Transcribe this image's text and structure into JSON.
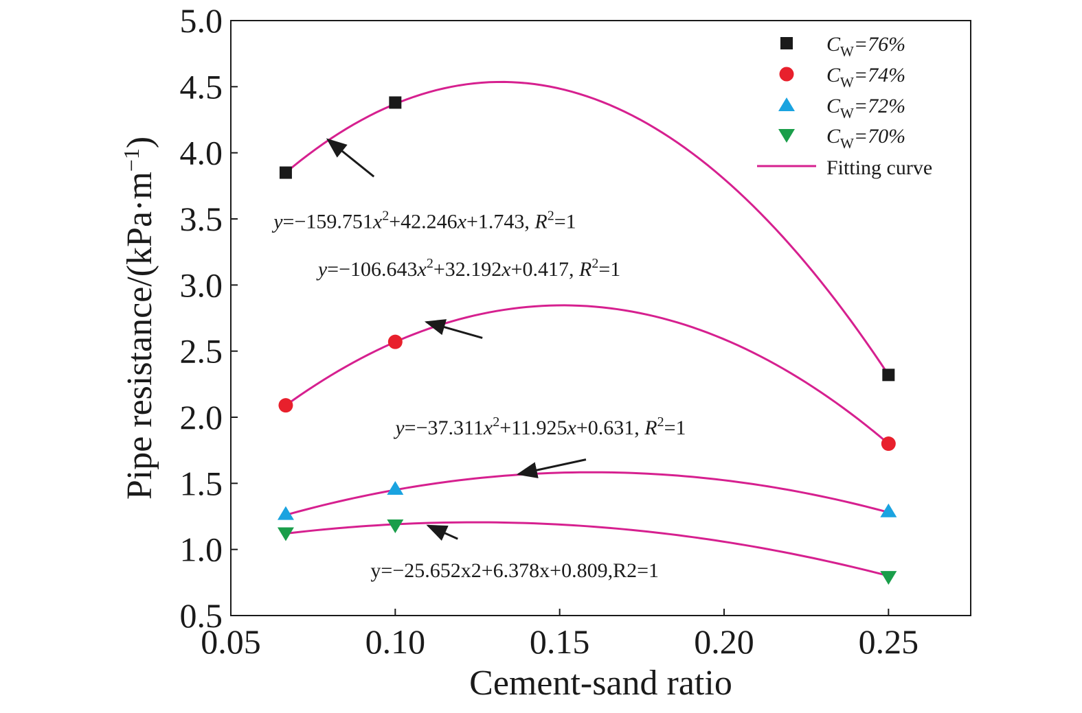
{
  "chart_data": {
    "type": "scatter",
    "xlabel": "Cement-sand ratio",
    "ylabel": "Pipe resistance/(kPa·m",
    "ylabel_sup": "−1",
    "ylabel_close": ")",
    "xlim": [
      0.05,
      0.275
    ],
    "ylim": [
      0.5,
      5.0
    ],
    "xticks": [
      0.05,
      0.1,
      0.15,
      0.2,
      0.25
    ],
    "xtick_labels": [
      "0.05",
      "0.10",
      "0.15",
      "0.20",
      "0.25"
    ],
    "yticks": [
      0.5,
      1.0,
      1.5,
      2.0,
      2.5,
      3.0,
      3.5,
      4.0,
      4.5,
      5.0
    ],
    "ytick_labels": [
      "0.5",
      "1.0",
      "1.5",
      "2.0",
      "2.5",
      "3.0",
      "3.5",
      "4.0",
      "4.5",
      "5.0"
    ],
    "grid": false,
    "legend_position": "top-right",
    "fit_legend_label": "Fitting curve",
    "fit_color": "#d6208f",
    "series": [
      {
        "name": "CW=76%",
        "legend_main": "C",
        "legend_sub": "W",
        "legend_rest": "=76%",
        "marker": "square",
        "color": "#1a1a1a",
        "x": [
          0.0667,
          0.1,
          0.25
        ],
        "y": [
          3.85,
          4.38,
          2.32
        ],
        "fit": [
          -159.751,
          42.246,
          1.743
        ]
      },
      {
        "name": "CW=74%",
        "legend_main": "C",
        "legend_sub": "W",
        "legend_rest": "=74%",
        "marker": "circle",
        "color": "#e8202c",
        "x": [
          0.0667,
          0.1,
          0.25
        ],
        "y": [
          2.09,
          2.57,
          1.8
        ],
        "fit": [
          -106.643,
          32.192,
          0.417
        ]
      },
      {
        "name": "CW=72%",
        "legend_main": "C",
        "legend_sub": "W",
        "legend_rest": "=72%",
        "marker": "triangle-up",
        "color": "#1aa3e0",
        "x": [
          0.0667,
          0.1,
          0.25
        ],
        "y": [
          1.27,
          1.46,
          1.29
        ],
        "fit": [
          -37.311,
          11.925,
          0.631
        ]
      },
      {
        "name": "CW=70%",
        "legend_main": "C",
        "legend_sub": "W",
        "legend_rest": "=70%",
        "marker": "triangle-down",
        "color": "#1a9e4a",
        "x": [
          0.0667,
          0.1,
          0.25
        ],
        "y": [
          1.12,
          1.18,
          0.79
        ],
        "fit": [
          -25.652,
          6.378,
          0.809
        ]
      }
    ],
    "annotations": [
      {
        "parts": [
          "y",
          "=−159.751",
          "x",
          "2",
          "+42.246",
          "x",
          "+1.743, ",
          "R",
          "2",
          "=1"
        ],
        "styles": [
          "i",
          "n",
          "i",
          "sup",
          "n",
          "i",
          "n",
          "i",
          "sup",
          "n"
        ],
        "text_x": 0.063,
        "text_y": 3.43,
        "arrow_from": [
          0.0935,
          3.82
        ],
        "arrow_to": [
          0.0795,
          4.1
        ]
      },
      {
        "parts": [
          "y",
          "=−106.643",
          "x",
          "2",
          "+32.192",
          "x",
          "+0.417, ",
          "R",
          "2",
          "=1"
        ],
        "styles": [
          "i",
          "n",
          "i",
          "sup",
          "n",
          "i",
          "n",
          "i",
          "sup",
          "n"
        ],
        "text_x": 0.0765,
        "text_y": 3.07,
        "arrow_from": [
          0.1265,
          2.6
        ],
        "arrow_to": [
          0.1095,
          2.72
        ]
      },
      {
        "parts": [
          "y",
          "=−37.311",
          "x",
          "2",
          "+11.925",
          "x",
          "+0.631, ",
          "R",
          "2",
          "=1"
        ],
        "styles": [
          "i",
          "n",
          "i",
          "sup",
          "n",
          "i",
          "n",
          "i",
          "sup",
          "n"
        ],
        "text_x": 0.1,
        "text_y": 1.87,
        "arrow_from": [
          0.158,
          1.68
        ],
        "arrow_to": [
          0.1375,
          1.57
        ]
      },
      {
        "parts": [
          "y=−25.652x2+6.378x+0.809,R2=1"
        ],
        "styles": [
          "n"
        ],
        "text_x": 0.0925,
        "text_y": 0.79,
        "arrow_from": [
          0.119,
          1.08
        ],
        "arrow_to": [
          0.11,
          1.18
        ]
      }
    ]
  }
}
